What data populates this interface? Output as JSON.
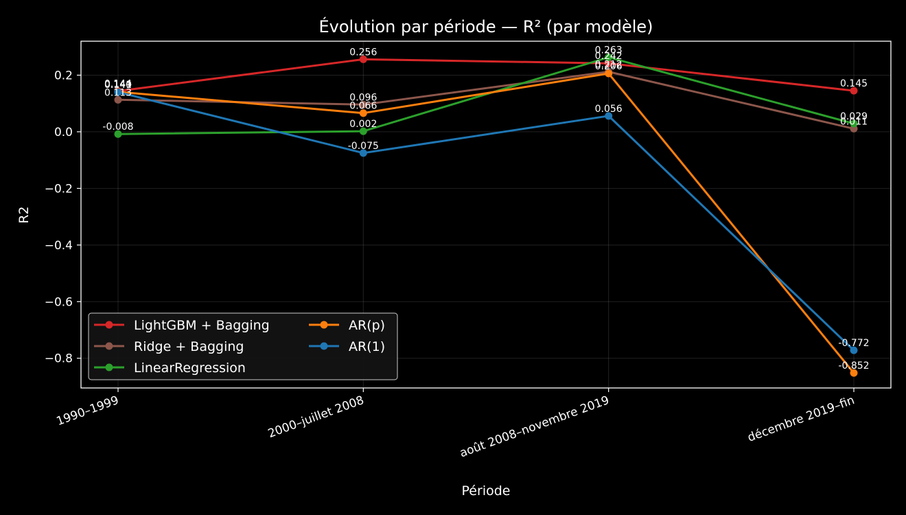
{
  "chart_data": {
    "type": "line",
    "title": "Évolution par période — R² (par modèle)",
    "xlabel": "Période",
    "ylabel": "R2",
    "categories": [
      "1990–1999",
      "2000–juillet 2008",
      "août 2008–novembre 2019",
      "décembre 2019–fin"
    ],
    "ylim": [
      -0.905,
      0.32
    ],
    "yticks": [
      -0.8,
      -0.6,
      -0.4,
      -0.2,
      0.0,
      0.2
    ],
    "ytick_labels": [
      "−0.8",
      "−0.6",
      "−0.4",
      "−0.2",
      "0.0",
      "0.2"
    ],
    "grid": true,
    "legend_position": "lower-left",
    "series": [
      {
        "name": "LightGBM + Bagging",
        "color": "#d62728",
        "values": [
          0.144,
          0.256,
          0.242,
          0.145
        ],
        "labels": [
          "0.144",
          "0.256",
          "0.242",
          "0.145"
        ]
      },
      {
        "name": "Ridge + Bagging",
        "color": "#8c564b",
        "values": [
          0.113,
          0.096,
          0.212,
          0.011
        ],
        "labels": [
          "0.113",
          "0.096",
          "0.212",
          "0.011"
        ]
      },
      {
        "name": "LinearRegression",
        "color": "#2ca02c",
        "values": [
          -0.008,
          0.002,
          0.263,
          0.029
        ],
        "labels": [
          "-0.008",
          "0.002",
          "0.263",
          "0.029"
        ]
      },
      {
        "name": "AR(p)",
        "color": "#ff7f0e",
        "values": [
          0.141,
          0.066,
          0.206,
          -0.852
        ],
        "labels": [
          "0.141",
          "0.066",
          "0.206",
          "-0.852"
        ]
      },
      {
        "name": "AR(1)",
        "color": "#1f77b4",
        "values": [
          0.14,
          -0.075,
          0.056,
          -0.772
        ],
        "labels": [
          "0.140",
          "-0.075",
          "0.056",
          "-0.772"
        ]
      }
    ]
  }
}
